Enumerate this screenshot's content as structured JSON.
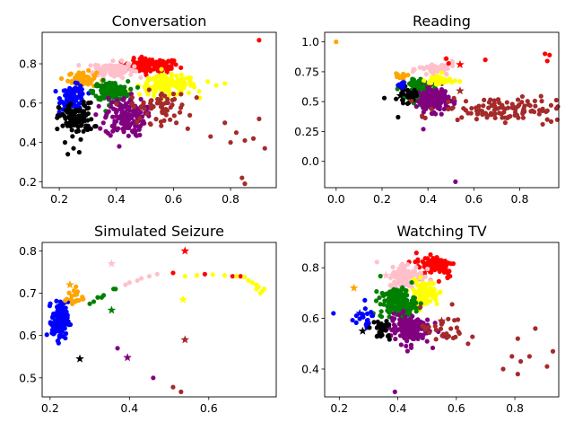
{
  "colors": {
    "black": "#000000",
    "blue": "#0000ff",
    "orange": "#ffa500",
    "green": "#008000",
    "pink": "#ffc0cb",
    "purple": "#800080",
    "yellow": "#ffff00",
    "red": "#ff0000",
    "brown": "#a52a2a"
  },
  "chart_data": [
    {
      "type": "scatter",
      "title": "Conversation",
      "xlim": [
        0.14,
        0.96
      ],
      "ylim": [
        0.17,
        0.96
      ],
      "xticks": [
        0.2,
        0.4,
        0.6,
        0.8
      ],
      "yticks": [
        0.2,
        0.4,
        0.6,
        0.8
      ],
      "clusters": [
        {
          "color": "red",
          "cx": 0.52,
          "cy": 0.79,
          "sx": 0.05,
          "sy": 0.018,
          "n": 110
        },
        {
          "color": "pink",
          "cx": 0.39,
          "cy": 0.77,
          "sx": 0.035,
          "sy": 0.02,
          "n": 110
        },
        {
          "color": "orange",
          "cx": 0.28,
          "cy": 0.72,
          "sx": 0.025,
          "sy": 0.02,
          "n": 60
        },
        {
          "color": "yellow",
          "cx": 0.58,
          "cy": 0.69,
          "sx": 0.05,
          "sy": 0.025,
          "n": 150
        },
        {
          "color": "blue",
          "cx": 0.25,
          "cy": 0.63,
          "sx": 0.022,
          "sy": 0.03,
          "n": 90
        },
        {
          "color": "green",
          "cx": 0.38,
          "cy": 0.66,
          "sx": 0.03,
          "sy": 0.025,
          "n": 150
        },
        {
          "color": "purple",
          "cx": 0.43,
          "cy": 0.53,
          "sx": 0.035,
          "sy": 0.05,
          "n": 150
        },
        {
          "color": "black",
          "cx": 0.26,
          "cy": 0.52,
          "sx": 0.03,
          "sy": 0.04,
          "n": 110
        },
        {
          "color": "brown",
          "cx": 0.55,
          "cy": 0.58,
          "sx": 0.05,
          "sy": 0.04,
          "n": 60
        }
      ],
      "points": [
        {
          "color": "red",
          "x": 0.9,
          "y": 0.92
        },
        {
          "color": "black",
          "x": 0.22,
          "y": 0.4
        },
        {
          "color": "black",
          "x": 0.25,
          "y": 0.37
        },
        {
          "color": "black",
          "x": 0.23,
          "y": 0.34
        },
        {
          "color": "black",
          "x": 0.27,
          "y": 0.35
        },
        {
          "color": "purple",
          "x": 0.41,
          "y": 0.38
        },
        {
          "color": "yellow",
          "x": 0.72,
          "y": 0.71
        },
        {
          "color": "yellow",
          "x": 0.75,
          "y": 0.69
        },
        {
          "color": "yellow",
          "x": 0.69,
          "y": 0.66
        },
        {
          "color": "yellow",
          "x": 0.78,
          "y": 0.7
        },
        {
          "color": "brown",
          "x": 0.61,
          "y": 0.5
        },
        {
          "color": "brown",
          "x": 0.65,
          "y": 0.47
        },
        {
          "color": "brown",
          "x": 0.73,
          "y": 0.43
        },
        {
          "color": "brown",
          "x": 0.8,
          "y": 0.4
        },
        {
          "color": "brown",
          "x": 0.82,
          "y": 0.45
        },
        {
          "color": "brown",
          "x": 0.85,
          "y": 0.41
        },
        {
          "color": "brown",
          "x": 0.88,
          "y": 0.42
        },
        {
          "color": "brown",
          "x": 0.9,
          "y": 0.52
        },
        {
          "color": "brown",
          "x": 0.92,
          "y": 0.37
        },
        {
          "color": "brown",
          "x": 0.84,
          "y": 0.22
        },
        {
          "color": "brown",
          "x": 0.85,
          "y": 0.19
        },
        {
          "color": "brown",
          "x": 0.78,
          "y": 0.5
        }
      ]
    },
    {
      "type": "scatter",
      "title": "Reading",
      "xlim": [
        -0.05,
        0.97
      ],
      "ylim": [
        -0.22,
        1.08
      ],
      "xticks": [
        0.0,
        0.2,
        0.4,
        0.6,
        0.8
      ],
      "yticks": [
        0.0,
        0.25,
        0.5,
        0.75,
        1.0
      ],
      "clusters": [
        {
          "color": "green",
          "cx": 0.38,
          "cy": 0.6,
          "sx": 0.03,
          "sy": 0.04,
          "n": 120
        },
        {
          "color": "purple",
          "cx": 0.42,
          "cy": 0.52,
          "sx": 0.035,
          "sy": 0.05,
          "n": 160
        },
        {
          "color": "pink",
          "cx": 0.44,
          "cy": 0.77,
          "sx": 0.04,
          "sy": 0.03,
          "n": 50
        },
        {
          "color": "yellow",
          "cx": 0.45,
          "cy": 0.68,
          "sx": 0.03,
          "sy": 0.025,
          "n": 40
        },
        {
          "color": "black",
          "cx": 0.31,
          "cy": 0.55,
          "sx": 0.02,
          "sy": 0.03,
          "n": 30
        },
        {
          "color": "orange",
          "cx": 0.28,
          "cy": 0.71,
          "sx": 0.015,
          "sy": 0.015,
          "n": 12
        },
        {
          "color": "blue",
          "cx": 0.29,
          "cy": 0.64,
          "sx": 0.015,
          "sy": 0.015,
          "n": 10
        },
        {
          "color": "brown",
          "cx": 0.72,
          "cy": 0.44,
          "sx": 0.13,
          "sy": 0.05,
          "n": 120
        }
      ],
      "points": [
        {
          "color": "orange",
          "x": 0.0,
          "y": 1.0
        },
        {
          "color": "purple",
          "x": 0.52,
          "y": -0.17
        },
        {
          "color": "purple",
          "x": 0.38,
          "y": 0.27
        },
        {
          "color": "black",
          "x": 0.21,
          "y": 0.53
        },
        {
          "color": "black",
          "x": 0.27,
          "y": 0.37
        },
        {
          "color": "red",
          "x": 0.91,
          "y": 0.9
        },
        {
          "color": "red",
          "x": 0.93,
          "y": 0.89
        },
        {
          "color": "red",
          "x": 0.92,
          "y": 0.84
        },
        {
          "color": "red",
          "x": 0.65,
          "y": 0.85
        },
        {
          "color": "red",
          "x": 0.49,
          "y": 0.82
        },
        {
          "color": "red",
          "x": 0.48,
          "y": 0.86
        },
        {
          "color": "brown",
          "x": 0.92,
          "y": 0.35
        },
        {
          "color": "brown",
          "x": 0.9,
          "y": 0.31
        }
      ],
      "stars": [
        {
          "color": "red",
          "x": 0.54,
          "y": 0.81
        },
        {
          "color": "pink",
          "x": 0.42,
          "y": 0.78
        },
        {
          "color": "orange",
          "x": 0.29,
          "y": 0.71
        },
        {
          "color": "blue",
          "x": 0.29,
          "y": 0.65
        },
        {
          "color": "black",
          "x": 0.28,
          "y": 0.55
        },
        {
          "color": "brown",
          "x": 0.54,
          "y": 0.59
        },
        {
          "color": "green",
          "x": 0.38,
          "y": 0.63
        },
        {
          "color": "purple",
          "x": 0.41,
          "y": 0.53
        }
      ]
    },
    {
      "type": "scatter",
      "title": "Simulated Seizure",
      "xlim": [
        0.18,
        0.77
      ],
      "ylim": [
        0.455,
        0.82
      ],
      "xticks": [
        0.2,
        0.4,
        0.6
      ],
      "yticks": [
        0.5,
        0.6,
        0.7,
        0.8
      ],
      "clusters": [
        {
          "color": "blue",
          "cx": 0.225,
          "cy": 0.635,
          "sx": 0.01,
          "sy": 0.022,
          "n": 130
        },
        {
          "color": "orange",
          "cx": 0.26,
          "cy": 0.69,
          "sx": 0.012,
          "sy": 0.012,
          "n": 20
        }
      ],
      "points": [
        {
          "color": "green",
          "x": 0.31,
          "y": 0.68
        },
        {
          "color": "green",
          "x": 0.32,
          "y": 0.69
        },
        {
          "color": "green",
          "x": 0.33,
          "y": 0.69
        },
        {
          "color": "green",
          "x": 0.335,
          "y": 0.695
        },
        {
          "color": "green",
          "x": 0.3,
          "y": 0.675
        },
        {
          "color": "green",
          "x": 0.36,
          "y": 0.71
        },
        {
          "color": "green",
          "x": 0.365,
          "y": 0.71
        },
        {
          "color": "pink",
          "x": 0.39,
          "y": 0.72
        },
        {
          "color": "pink",
          "x": 0.4,
          "y": 0.725
        },
        {
          "color": "pink",
          "x": 0.43,
          "y": 0.735
        },
        {
          "color": "pink",
          "x": 0.45,
          "y": 0.74
        },
        {
          "color": "pink",
          "x": 0.47,
          "y": 0.745
        },
        {
          "color": "pink",
          "x": 0.42,
          "y": 0.73
        },
        {
          "color": "red",
          "x": 0.51,
          "y": 0.748
        },
        {
          "color": "red",
          "x": 0.59,
          "y": 0.745
        },
        {
          "color": "red",
          "x": 0.66,
          "y": 0.74
        },
        {
          "color": "red",
          "x": 0.68,
          "y": 0.74
        },
        {
          "color": "yellow",
          "x": 0.54,
          "y": 0.74
        },
        {
          "color": "yellow",
          "x": 0.57,
          "y": 0.742
        },
        {
          "color": "yellow",
          "x": 0.61,
          "y": 0.744
        },
        {
          "color": "yellow",
          "x": 0.64,
          "y": 0.742
        },
        {
          "color": "yellow",
          "x": 0.67,
          "y": 0.74
        },
        {
          "color": "yellow",
          "x": 0.69,
          "y": 0.738
        },
        {
          "color": "yellow",
          "x": 0.7,
          "y": 0.73
        },
        {
          "color": "yellow",
          "x": 0.71,
          "y": 0.725
        },
        {
          "color": "yellow",
          "x": 0.72,
          "y": 0.72
        },
        {
          "color": "yellow",
          "x": 0.72,
          "y": 0.71
        },
        {
          "color": "yellow",
          "x": 0.73,
          "y": 0.7
        },
        {
          "color": "yellow",
          "x": 0.74,
          "y": 0.71
        },
        {
          "color": "yellow",
          "x": 0.735,
          "y": 0.705
        },
        {
          "color": "yellow",
          "x": 0.725,
          "y": 0.715
        },
        {
          "color": "purple",
          "x": 0.37,
          "y": 0.57
        },
        {
          "color": "purple",
          "x": 0.46,
          "y": 0.5
        },
        {
          "color": "brown",
          "x": 0.51,
          "y": 0.478
        },
        {
          "color": "brown",
          "x": 0.53,
          "y": 0.467
        }
      ],
      "stars": [
        {
          "color": "red",
          "x": 0.54,
          "y": 0.8
        },
        {
          "color": "pink",
          "x": 0.355,
          "y": 0.77
        },
        {
          "color": "orange",
          "x": 0.25,
          "y": 0.72
        },
        {
          "color": "yellow",
          "x": 0.535,
          "y": 0.685
        },
        {
          "color": "green",
          "x": 0.355,
          "y": 0.66
        },
        {
          "color": "brown",
          "x": 0.54,
          "y": 0.59
        },
        {
          "color": "black",
          "x": 0.275,
          "y": 0.545
        },
        {
          "color": "purple",
          "x": 0.395,
          "y": 0.548
        }
      ]
    },
    {
      "type": "scatter",
      "title": "Watching TV",
      "xlim": [
        0.15,
        0.95
      ],
      "ylim": [
        0.29,
        0.9
      ],
      "xticks": [
        0.2,
        0.4,
        0.6,
        0.8
      ],
      "yticks": [
        0.4,
        0.6,
        0.8
      ],
      "clusters": [
        {
          "color": "red",
          "cx": 0.53,
          "cy": 0.81,
          "sx": 0.035,
          "sy": 0.025,
          "n": 80
        },
        {
          "color": "pink",
          "cx": 0.43,
          "cy": 0.77,
          "sx": 0.03,
          "sy": 0.025,
          "n": 100
        },
        {
          "color": "yellow",
          "cx": 0.49,
          "cy": 0.7,
          "sx": 0.025,
          "sy": 0.025,
          "n": 90
        },
        {
          "color": "green",
          "cx": 0.4,
          "cy": 0.66,
          "sx": 0.03,
          "sy": 0.03,
          "n": 170
        },
        {
          "color": "purple",
          "cx": 0.44,
          "cy": 0.56,
          "sx": 0.035,
          "sy": 0.03,
          "n": 150
        },
        {
          "color": "blue",
          "cx": 0.28,
          "cy": 0.6,
          "sx": 0.02,
          "sy": 0.02,
          "n": 20
        },
        {
          "color": "black",
          "cx": 0.34,
          "cy": 0.55,
          "sx": 0.02,
          "sy": 0.02,
          "n": 25
        },
        {
          "color": "brown",
          "cx": 0.56,
          "cy": 0.56,
          "sx": 0.04,
          "sy": 0.04,
          "n": 30
        }
      ],
      "points": [
        {
          "color": "blue",
          "x": 0.18,
          "y": 0.62
        },
        {
          "color": "purple",
          "x": 0.39,
          "y": 0.31
        },
        {
          "color": "brown",
          "x": 0.64,
          "y": 0.5
        },
        {
          "color": "brown",
          "x": 0.76,
          "y": 0.4
        },
        {
          "color": "brown",
          "x": 0.79,
          "y": 0.45
        },
        {
          "color": "brown",
          "x": 0.81,
          "y": 0.52
        },
        {
          "color": "brown",
          "x": 0.81,
          "y": 0.38
        },
        {
          "color": "brown",
          "x": 0.82,
          "y": 0.43
        },
        {
          "color": "brown",
          "x": 0.85,
          "y": 0.45
        },
        {
          "color": "brown",
          "x": 0.87,
          "y": 0.56
        },
        {
          "color": "brown",
          "x": 0.91,
          "y": 0.41
        },
        {
          "color": "brown",
          "x": 0.93,
          "y": 0.47
        },
        {
          "color": "red",
          "x": 0.57,
          "y": 0.76
        }
      ],
      "stars": [
        {
          "color": "red",
          "x": 0.52,
          "y": 0.8
        },
        {
          "color": "pink",
          "x": 0.36,
          "y": 0.77
        },
        {
          "color": "orange",
          "x": 0.25,
          "y": 0.72
        },
        {
          "color": "yellow",
          "x": 0.48,
          "y": 0.71
        },
        {
          "color": "green",
          "x": 0.38,
          "y": 0.67
        },
        {
          "color": "blue",
          "x": 0.27,
          "y": 0.62
        },
        {
          "color": "brown",
          "x": 0.55,
          "y": 0.59
        },
        {
          "color": "black",
          "x": 0.28,
          "y": 0.55
        },
        {
          "color": "purple",
          "x": 0.43,
          "y": 0.56
        }
      ]
    }
  ]
}
